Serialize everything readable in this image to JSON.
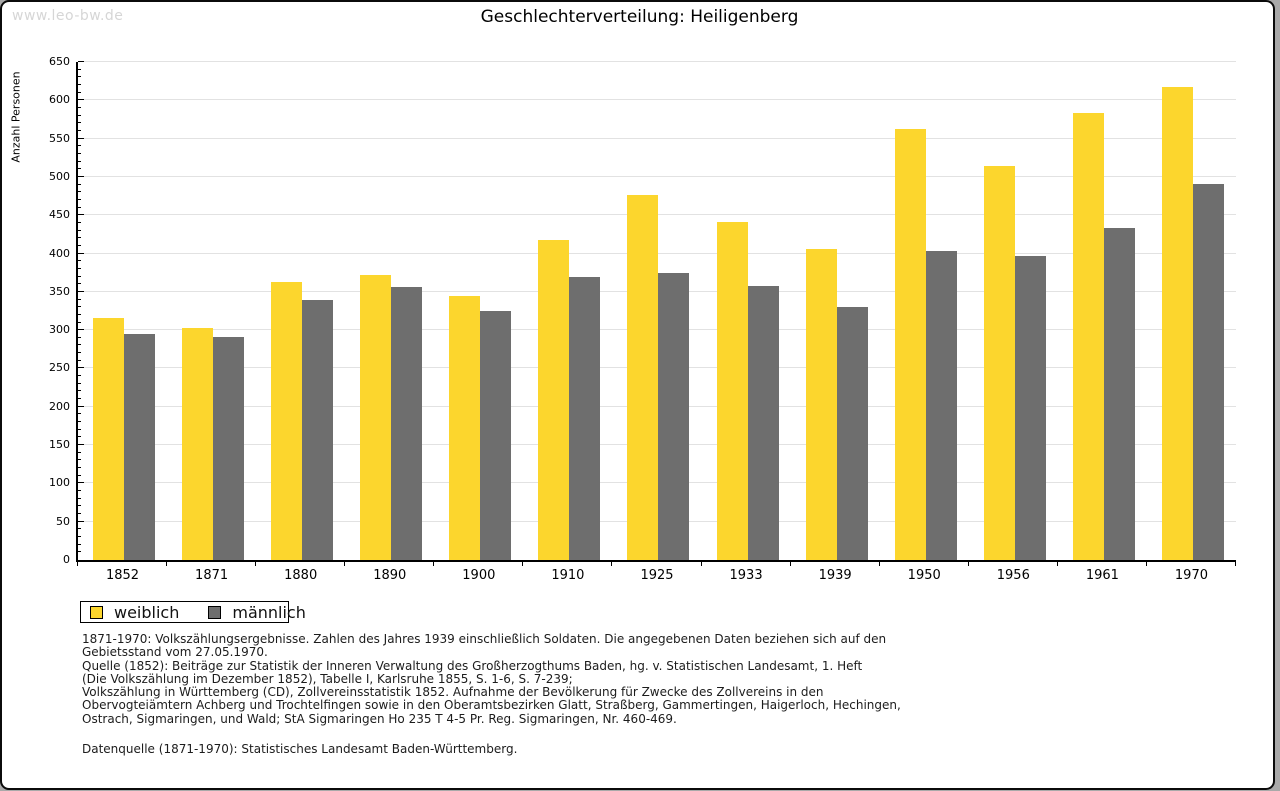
{
  "page": {
    "watermark": "www.leo-bw.de",
    "title": "Geschlechterverteilung: Heiligenberg"
  },
  "chart_data": {
    "type": "bar",
    "title": "Geschlechterverteilung: Heiligenberg",
    "xlabel": "",
    "ylabel": "Anzahl Personen",
    "categories": [
      "1852",
      "1871",
      "1880",
      "1890",
      "1900",
      "1910",
      "1925",
      "1933",
      "1939",
      "1950",
      "1956",
      "1961",
      "1970"
    ],
    "series": [
      {
        "name": "weiblich",
        "color": "#fcd62d",
        "values": [
          316,
          303,
          363,
          372,
          345,
          418,
          477,
          441,
          406,
          563,
          514,
          583,
          618
        ]
      },
      {
        "name": "männlich",
        "color": "#6e6e6e",
        "values": [
          295,
          291,
          339,
          356,
          325,
          370,
          375,
          357,
          330,
          403,
          397,
          434,
          491
        ]
      }
    ],
    "ylim": [
      0,
      650
    ],
    "ytick_step": 50,
    "yminor_step": 10,
    "grid": true,
    "gridline_color": "#e2e2e2",
    "legend_position": "bottom-left"
  },
  "legend": {
    "items": [
      {
        "label": "weiblich",
        "color": "#fcd62d"
      },
      {
        "label": "männlich",
        "color": "#6e6e6e"
      }
    ]
  },
  "footnotes": {
    "lines": [
      "1871-1970: Volkszählungsergebnisse. Zahlen des Jahres 1939 einschließlich Soldaten. Die angegebenen Daten beziehen sich auf den",
      "Gebietsstand vom 27.05.1970.",
      "Quelle (1852): Beiträge zur Statistik der Inneren Verwaltung des Großherzogthums Baden, hg. v. Statistischen Landesamt, 1. Heft",
      "(Die Volkszählung im Dezember 1852), Tabelle I, Karlsruhe 1855, S. 1-6, S. 7-239;",
      "Volkszählung in Württemberg (CD), Zollvereinsstatistik 1852. Aufnahme der Bevölkerung für Zwecke des Zollvereins in den",
      "Obervogteiämtern Achberg und Trochtelfingen sowie in den Oberamtsbezirken Glatt, Straßberg, Gammertingen, Haigerloch, Hechingen,",
      "Ostrach, Sigmaringen, und Wald; StA Sigmaringen Ho 235 T 4-5 Pr. Reg. Sigmaringen, Nr. 460-469."
    ],
    "source_line": "Datenquelle (1871-1970): Statistisches Landesamt Baden-Württemberg."
  }
}
